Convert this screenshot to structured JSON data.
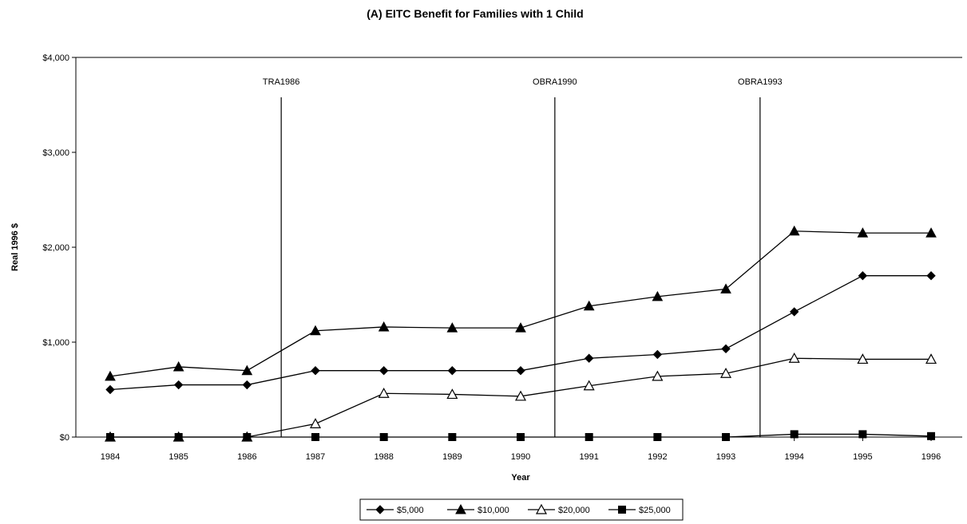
{
  "chart_data": {
    "type": "line",
    "title": "(A) EITC Benefit for Families with 1 Child",
    "xlabel": "Year",
    "ylabel": "Real 1996 $",
    "x": [
      1984,
      1985,
      1986,
      1987,
      1988,
      1989,
      1990,
      1991,
      1992,
      1993,
      1994,
      1995,
      1996
    ],
    "ylim": [
      0,
      4000
    ],
    "yticks": [
      0,
      1000,
      2000,
      3000,
      4000
    ],
    "ytick_labels": [
      "$0",
      "$1,000",
      "$2,000",
      "$3,000",
      "$4,000"
    ],
    "grid": false,
    "legend_position": "bottom",
    "series": [
      {
        "name": "$5,000",
        "marker": "diamond",
        "values": [
          500,
          550,
          550,
          700,
          700,
          700,
          700,
          830,
          870,
          930,
          1320,
          1700,
          1700
        ]
      },
      {
        "name": "$10,000",
        "marker": "triangle",
        "values": [
          640,
          740,
          700,
          1120,
          1160,
          1150,
          1150,
          1380,
          1480,
          1560,
          2170,
          2150,
          2150
        ]
      },
      {
        "name": "$20,000",
        "marker": "triangle-open",
        "values": [
          0,
          0,
          0,
          140,
          460,
          450,
          430,
          540,
          640,
          670,
          830,
          820,
          820
        ]
      },
      {
        "name": "$25,000",
        "marker": "square",
        "values": [
          0,
          0,
          0,
          0,
          0,
          0,
          0,
          0,
          0,
          0,
          30,
          30,
          10
        ]
      }
    ],
    "annotations": [
      {
        "label": "TRA1986",
        "x": 1986.5
      },
      {
        "label": "OBRA1990",
        "x": 1990.5
      },
      {
        "label": "OBRA1993",
        "x": 1993.5
      }
    ]
  }
}
